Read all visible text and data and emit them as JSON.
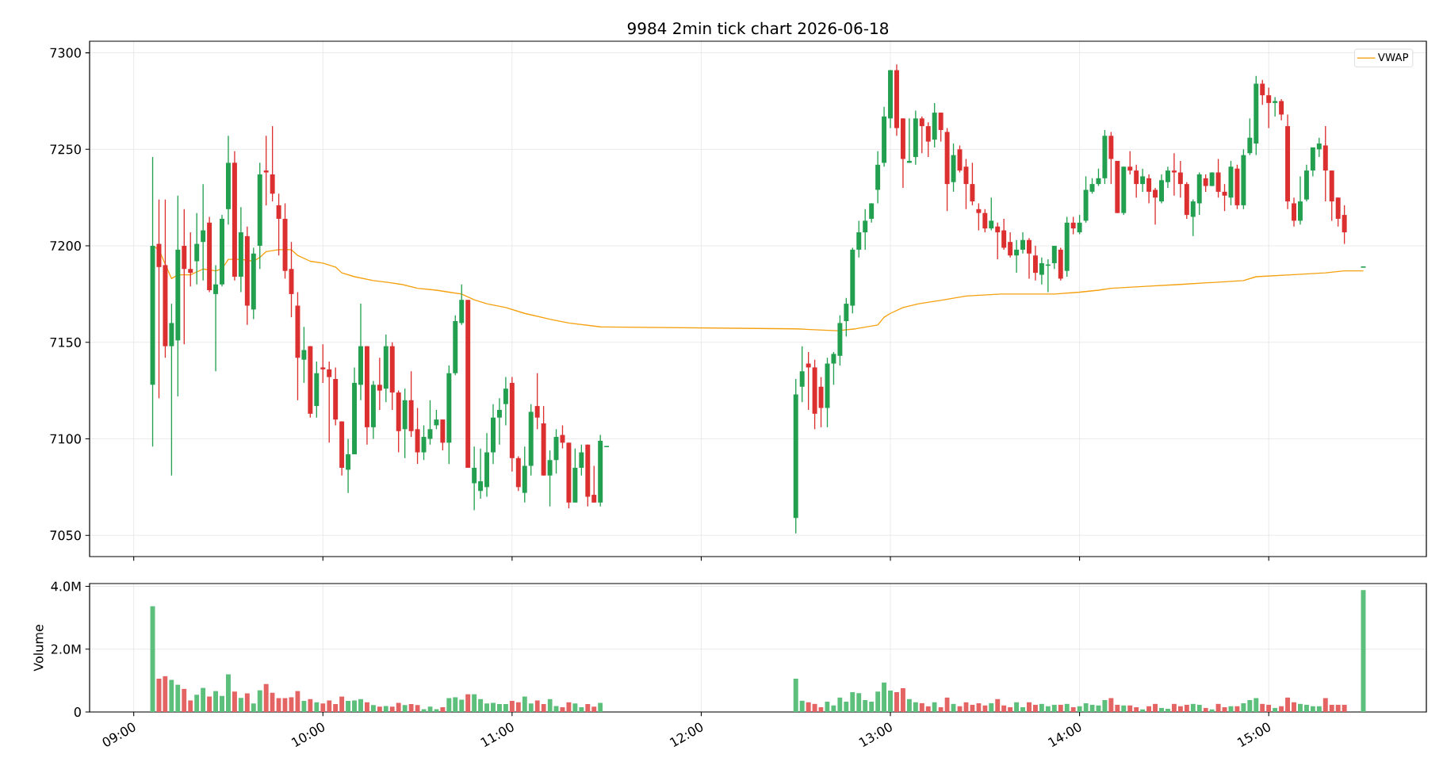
{
  "chart_data": [
    {
      "type": "candlestick",
      "title": "9984 2min tick chart 2026-06-18",
      "x": [
        "2026-06-18T09:06",
        "2026-06-18T09:08",
        "2026-06-18T09:10",
        "2026-06-18T09:12",
        "2026-06-18T09:14",
        "2026-06-18T09:16",
        "2026-06-18T09:18",
        "2026-06-18T09:20",
        "2026-06-18T09:22",
        "2026-06-18T09:24",
        "2026-06-18T09:26",
        "2026-06-18T09:28",
        "2026-06-18T09:30",
        "2026-06-18T09:32",
        "2026-06-18T09:34",
        "2026-06-18T09:36",
        "2026-06-18T09:38",
        "2026-06-18T09:40",
        "2026-06-18T09:42",
        "2026-06-18T09:44",
        "2026-06-18T09:46",
        "2026-06-18T09:48",
        "2026-06-18T09:50",
        "2026-06-18T09:52",
        "2026-06-18T09:54",
        "2026-06-18T09:56",
        "2026-06-18T09:58",
        "2026-06-18T10:00",
        "2026-06-18T10:02",
        "2026-06-18T10:04",
        "2026-06-18T10:06",
        "2026-06-18T10:08",
        "2026-06-18T10:10",
        "2026-06-18T10:12",
        "2026-06-18T10:14",
        "2026-06-18T10:16",
        "2026-06-18T10:18",
        "2026-06-18T10:20",
        "2026-06-18T10:22",
        "2026-06-18T10:24",
        "2026-06-18T10:26",
        "2026-06-18T10:28",
        "2026-06-18T10:30",
        "2026-06-18T10:32",
        "2026-06-18T10:34",
        "2026-06-18T10:36",
        "2026-06-18T10:38",
        "2026-06-18T10:40",
        "2026-06-18T10:42",
        "2026-06-18T10:44",
        "2026-06-18T10:46",
        "2026-06-18T10:48",
        "2026-06-18T10:50",
        "2026-06-18T10:52",
        "2026-06-18T10:54",
        "2026-06-18T10:56",
        "2026-06-18T10:58",
        "2026-06-18T11:00",
        "2026-06-18T11:02",
        "2026-06-18T11:04",
        "2026-06-18T11:06",
        "2026-06-18T11:08",
        "2026-06-18T11:10",
        "2026-06-18T11:12",
        "2026-06-18T11:14",
        "2026-06-18T11:16",
        "2026-06-18T11:18",
        "2026-06-18T11:20",
        "2026-06-18T11:22",
        "2026-06-18T11:24",
        "2026-06-18T11:26",
        "2026-06-18T11:28",
        "2026-06-18T11:30",
        "2026-06-18T12:30",
        "2026-06-18T12:32",
        "2026-06-18T12:34",
        "2026-06-18T12:36",
        "2026-06-18T12:38",
        "2026-06-18T12:40",
        "2026-06-18T12:42",
        "2026-06-18T12:44",
        "2026-06-18T12:46",
        "2026-06-18T12:48",
        "2026-06-18T12:50",
        "2026-06-18T12:52",
        "2026-06-18T12:54",
        "2026-06-18T12:56",
        "2026-06-18T12:58",
        "2026-06-18T13:00",
        "2026-06-18T13:02",
        "2026-06-18T13:04",
        "2026-06-18T13:06",
        "2026-06-18T13:08",
        "2026-06-18T13:10",
        "2026-06-18T13:12",
        "2026-06-18T13:14",
        "2026-06-18T13:16",
        "2026-06-18T13:18",
        "2026-06-18T13:20",
        "2026-06-18T13:22",
        "2026-06-18T13:24",
        "2026-06-18T13:26",
        "2026-06-18T13:28",
        "2026-06-18T13:30",
        "2026-06-18T13:32",
        "2026-06-18T13:34",
        "2026-06-18T13:36",
        "2026-06-18T13:38",
        "2026-06-18T13:40",
        "2026-06-18T13:42",
        "2026-06-18T13:44",
        "2026-06-18T13:46",
        "2026-06-18T13:48",
        "2026-06-18T13:50",
        "2026-06-18T13:52",
        "2026-06-18T13:54",
        "2026-06-18T13:56",
        "2026-06-18T13:58",
        "2026-06-18T14:00",
        "2026-06-18T14:02",
        "2026-06-18T14:04",
        "2026-06-18T14:06",
        "2026-06-18T14:08",
        "2026-06-18T14:10",
        "2026-06-18T14:12",
        "2026-06-18T14:14",
        "2026-06-18T14:16",
        "2026-06-18T14:18",
        "2026-06-18T14:20",
        "2026-06-18T14:22",
        "2026-06-18T14:24",
        "2026-06-18T14:26",
        "2026-06-18T14:28",
        "2026-06-18T14:30",
        "2026-06-18T14:32",
        "2026-06-18T14:34",
        "2026-06-18T14:36",
        "2026-06-18T14:38",
        "2026-06-18T14:40",
        "2026-06-18T14:42",
        "2026-06-18T14:44",
        "2026-06-18T14:46",
        "2026-06-18T14:48",
        "2026-06-18T14:50",
        "2026-06-18T14:52",
        "2026-06-18T14:54",
        "2026-06-18T14:56",
        "2026-06-18T14:58",
        "2026-06-18T15:00",
        "2026-06-18T15:02",
        "2026-06-18T15:04",
        "2026-06-18T15:06",
        "2026-06-18T15:08",
        "2026-06-18T15:10",
        "2026-06-18T15:12",
        "2026-06-18T15:14",
        "2026-06-18T15:16",
        "2026-06-18T15:18",
        "2026-06-18T15:20",
        "2026-06-18T15:22",
        "2026-06-18T15:24",
        "2026-06-18T15:30"
      ],
      "ohlc": [
        [
          7128,
          7246,
          7096,
          7200
        ],
        [
          7201,
          7224,
          7121,
          7189
        ],
        [
          7190,
          7224,
          7142,
          7148
        ],
        [
          7148,
          7170,
          7081,
          7160
        ],
        [
          7151,
          7226,
          7122,
          7198
        ],
        [
          7200,
          7219,
          7149,
          7188
        ],
        [
          7188,
          7207,
          7179,
          7186
        ],
        [
          7192,
          7217,
          7180,
          7201
        ],
        [
          7202,
          7232,
          7182,
          7208
        ],
        [
          7212,
          7215,
          7176,
          7177
        ],
        [
          7175,
          7190,
          7135,
          7180
        ],
        [
          7180,
          7216,
          7179,
          7214
        ],
        [
          7219,
          7257,
          7211,
          7243
        ],
        [
          7243,
          7249,
          7182,
          7184
        ],
        [
          7184,
          7220,
          7176,
          7207
        ],
        [
          7205,
          7210,
          7159,
          7169
        ],
        [
          7167,
          7199,
          7162,
          7196
        ],
        [
          7200,
          7243,
          7188,
          7237
        ],
        [
          7239,
          7257,
          7221,
          7238
        ],
        [
          7237,
          7262,
          7223,
          7227
        ],
        [
          7221,
          7227,
          7195,
          7214
        ],
        [
          7214,
          7222,
          7183,
          7187
        ],
        [
          7188,
          7202,
          7163,
          7175
        ],
        [
          7169,
          7176,
          7120,
          7142
        ],
        [
          7141,
          7158,
          7129,
          7146
        ],
        [
          7148,
          7148,
          7111,
          7113
        ],
        [
          7117,
          7140,
          7111,
          7134
        ],
        [
          7137,
          7149,
          7129,
          7136
        ],
        [
          7136,
          7140,
          7098,
          7132
        ],
        [
          7131,
          7137,
          7107,
          7110
        ],
        [
          7109,
          7109,
          7081,
          7085
        ],
        [
          7084,
          7100,
          7072,
          7092
        ],
        [
          7092,
          7137,
          7092,
          7129
        ],
        [
          7128,
          7170,
          7120,
          7148
        ],
        [
          7148,
          7148,
          7097,
          7106
        ],
        [
          7106,
          7130,
          7100,
          7128
        ],
        [
          7128,
          7142,
          7115,
          7125
        ],
        [
          7126,
          7154,
          7119,
          7148
        ],
        [
          7148,
          7150,
          7115,
          7124
        ],
        [
          7124,
          7125,
          7093,
          7104
        ],
        [
          7105,
          7126,
          7090,
          7120
        ],
        [
          7120,
          7135,
          7101,
          7104
        ],
        [
          7105,
          7116,
          7087,
          7093
        ],
        [
          7093,
          7107,
          7089,
          7101
        ],
        [
          7100,
          7120,
          7097,
          7105
        ],
        [
          7107,
          7115,
          7105,
          7110
        ],
        [
          7110,
          7110,
          7094,
          7098
        ],
        [
          7098,
          7138,
          7087,
          7134
        ],
        [
          7134,
          7164,
          7133,
          7161
        ],
        [
          7160,
          7180,
          7159,
          7172
        ],
        [
          7172,
          7172,
          7085,
          7085
        ],
        [
          7077,
          7096,
          7063,
          7085
        ],
        [
          7073,
          7095,
          7069,
          7078
        ],
        [
          7075,
          7103,
          7070,
          7093
        ],
        [
          7093,
          7118,
          7087,
          7111
        ],
        [
          7111,
          7121,
          7097,
          7115
        ],
        [
          7118,
          7132,
          7107,
          7126
        ],
        [
          7129,
          7132,
          7083,
          7090
        ],
        [
          7090,
          7091,
          7073,
          7075
        ],
        [
          7072,
          7096,
          7067,
          7086
        ],
        [
          7086,
          7118,
          7081,
          7114
        ],
        [
          7117,
          7134,
          7105,
          7111
        ],
        [
          7108,
          7117,
          7081,
          7081
        ],
        [
          7081,
          7094,
          7065,
          7089
        ],
        [
          7089,
          7105,
          7082,
          7101
        ],
        [
          7102,
          7107,
          7095,
          7098
        ],
        [
          7098,
          7098,
          7064,
          7067
        ],
        [
          7067,
          7095,
          7067,
          7085
        ],
        [
          7085,
          7097,
          7081,
          7093
        ],
        [
          7097,
          7097,
          7065,
          7070
        ],
        [
          7071,
          7086,
          7067,
          7067
        ],
        [
          7067,
          7102,
          7065,
          7099
        ],
        [
          7096,
          7096,
          7096,
          7096
        ],
        [
          7059,
          7131,
          7051,
          7123
        ],
        [
          7127,
          7148,
          7119,
          7135
        ],
        [
          7139,
          7145,
          7115,
          7137
        ],
        [
          7137,
          7141,
          7105,
          7113
        ],
        [
          7127,
          7132,
          7106,
          7116
        ],
        [
          7116,
          7142,
          7106,
          7139
        ],
        [
          7139,
          7145,
          7128,
          7144
        ],
        [
          7143,
          7164,
          7138,
          7160
        ],
        [
          7161,
          7173,
          7153,
          7170
        ],
        [
          7169,
          7199,
          7165,
          7198
        ],
        [
          7198,
          7213,
          7194,
          7207
        ],
        [
          7207,
          7219,
          7198,
          7213
        ],
        [
          7214,
          7222,
          7212,
          7222
        ],
        [
          7229,
          7249,
          7222,
          7242
        ],
        [
          7243,
          7272,
          7241,
          7267
        ],
        [
          7266,
          7291,
          7261,
          7291
        ],
        [
          7291,
          7294,
          7257,
          7261
        ],
        [
          7266,
          7266,
          7230,
          7245
        ],
        [
          7243,
          7266,
          7243,
          7244
        ],
        [
          7246,
          7270,
          7242,
          7266
        ],
        [
          7266,
          7267,
          7248,
          7262
        ],
        [
          7262,
          7264,
          7246,
          7254
        ],
        [
          7255,
          7274,
          7251,
          7269
        ],
        [
          7269,
          7269,
          7254,
          7260
        ],
        [
          7259,
          7261,
          7218,
          7232
        ],
        [
          7233,
          7253,
          7228,
          7247
        ],
        [
          7250,
          7252,
          7238,
          7239
        ],
        [
          7241,
          7245,
          7219,
          7232
        ],
        [
          7232,
          7243,
          7221,
          7223
        ],
        [
          7219,
          7222,
          7208,
          7217
        ],
        [
          7217,
          7219,
          7207,
          7209
        ],
        [
          7209,
          7225,
          7208,
          7213
        ],
        [
          7210,
          7212,
          7193,
          7207
        ],
        [
          7208,
          7214,
          7198,
          7199
        ],
        [
          7202,
          7207,
          7194,
          7195
        ],
        [
          7195,
          7203,
          7186,
          7198
        ],
        [
          7198,
          7207,
          7196,
          7203
        ],
        [
          7203,
          7204,
          7183,
          7196
        ],
        [
          7195,
          7200,
          7182,
          7186
        ],
        [
          7185,
          7194,
          7180,
          7191
        ],
        [
          7190,
          7193,
          7176,
          7190
        ],
        [
          7191,
          7200,
          7188,
          7200
        ],
        [
          7198,
          7199,
          7182,
          7183
        ],
        [
          7187,
          7215,
          7184,
          7212
        ],
        [
          7212,
          7215,
          7206,
          7209
        ],
        [
          7207,
          7216,
          7206,
          7212
        ],
        [
          7213,
          7236,
          7212,
          7229
        ],
        [
          7228,
          7235,
          7227,
          7232
        ],
        [
          7232,
          7240,
          7231,
          7235
        ],
        [
          7235,
          7260,
          7232,
          7257
        ],
        [
          7257,
          7259,
          7232,
          7245
        ],
        [
          7244,
          7244,
          7217,
          7217
        ],
        [
          7217,
          7241,
          7216,
          7241
        ],
        [
          7241,
          7249,
          7237,
          7239
        ],
        [
          7239,
          7242,
          7225,
          7232
        ],
        [
          7232,
          7240,
          7228,
          7236
        ],
        [
          7235,
          7237,
          7222,
          7228
        ],
        [
          7229,
          7230,
          7211,
          7225
        ],
        [
          7223,
          7237,
          7222,
          7234
        ],
        [
          7233,
          7241,
          7230,
          7239
        ],
        [
          7239,
          7248,
          7226,
          7238
        ],
        [
          7238,
          7244,
          7225,
          7232
        ],
        [
          7232,
          7233,
          7214,
          7216
        ],
        [
          7215,
          7224,
          7205,
          7223
        ],
        [
          7222,
          7238,
          7216,
          7237
        ],
        [
          7235,
          7237,
          7228,
          7231
        ],
        [
          7231,
          7238,
          7231,
          7238
        ],
        [
          7238,
          7245,
          7225,
          7228
        ],
        [
          7228,
          7232,
          7218,
          7226
        ],
        [
          7225,
          7244,
          7221,
          7241
        ],
        [
          7240,
          7242,
          7219,
          7221
        ],
        [
          7221,
          7250,
          7219,
          7247
        ],
        [
          7248,
          7266,
          7247,
          7256
        ],
        [
          7253,
          7288,
          7247,
          7284
        ],
        [
          7284,
          7286,
          7273,
          7278
        ],
        [
          7278,
          7282,
          7261,
          7274
        ],
        [
          7274,
          7277,
          7267,
          7275
        ],
        [
          7275,
          7276,
          7265,
          7268
        ],
        [
          7262,
          7268,
          7219,
          7223
        ],
        [
          7222,
          7225,
          7210,
          7213
        ],
        [
          7213,
          7236,
          7211,
          7223
        ],
        [
          7224,
          7242,
          7223,
          7239
        ],
        [
          7239,
          7251,
          7236,
          7251
        ],
        [
          7250,
          7256,
          7246,
          7253
        ],
        [
          7252,
          7262,
          7223,
          7239
        ],
        [
          7239,
          7239,
          7213,
          7223
        ],
        [
          7225,
          7225,
          7210,
          7214
        ],
        [
          7216,
          7221,
          7201,
          7207
        ],
        [
          7189,
          7189,
          7189,
          7189
        ]
      ],
      "colors": [
        "#22a04f",
        "#dc2f2f",
        "#dc2f2f",
        "#22a04f",
        "#22a04f",
        "#dc2f2f",
        "#dc2f2f",
        "#22a04f",
        "#22a04f",
        "#dc2f2f",
        "#22a04f",
        "#22a04f",
        "#22a04f",
        "#dc2f2f",
        "#22a04f",
        "#dc2f2f",
        "#22a04f",
        "#22a04f",
        "#dc2f2f",
        "#dc2f2f",
        "#dc2f2f",
        "#dc2f2f",
        "#dc2f2f",
        "#dc2f2f",
        "#22a04f",
        "#dc2f2f",
        "#22a04f",
        "#dc2f2f",
        "#dc2f2f",
        "#dc2f2f",
        "#dc2f2f",
        "#22a04f",
        "#22a04f",
        "#22a04f",
        "#dc2f2f",
        "#22a04f",
        "#dc2f2f",
        "#22a04f",
        "#dc2f2f",
        "#dc2f2f",
        "#22a04f",
        "#dc2f2f",
        "#dc2f2f",
        "#22a04f",
        "#22a04f",
        "#22a04f",
        "#dc2f2f",
        "#22a04f",
        "#22a04f",
        "#22a04f",
        "#dc2f2f",
        "#22a04f",
        "#22a04f",
        "#22a04f",
        "#22a04f",
        "#22a04f",
        "#22a04f",
        "#dc2f2f",
        "#dc2f2f",
        "#22a04f",
        "#22a04f",
        "#dc2f2f",
        "#dc2f2f",
        "#22a04f",
        "#22a04f",
        "#dc2f2f",
        "#dc2f2f",
        "#22a04f",
        "#22a04f",
        "#dc2f2f",
        "#dc2f2f",
        "#22a04f",
        "#22a04f",
        "#22a04f",
        "#22a04f",
        "#dc2f2f",
        "#dc2f2f",
        "#dc2f2f",
        "#22a04f",
        "#22a04f",
        "#22a04f",
        "#22a04f",
        "#22a04f",
        "#22a04f",
        "#22a04f",
        "#22a04f",
        "#22a04f",
        "#22a04f",
        "#22a04f",
        "#dc2f2f",
        "#dc2f2f",
        "#22a04f",
        "#22a04f",
        "#dc2f2f",
        "#dc2f2f",
        "#22a04f",
        "#dc2f2f",
        "#dc2f2f",
        "#22a04f",
        "#dc2f2f",
        "#dc2f2f",
        "#dc2f2f",
        "#dc2f2f",
        "#dc2f2f",
        "#22a04f",
        "#dc2f2f",
        "#dc2f2f",
        "#dc2f2f",
        "#22a04f",
        "#22a04f",
        "#dc2f2f",
        "#dc2f2f",
        "#22a04f",
        "#22a04f",
        "#22a04f",
        "#dc2f2f",
        "#22a04f",
        "#dc2f2f",
        "#22a04f",
        "#22a04f",
        "#22a04f",
        "#22a04f",
        "#22a04f",
        "#dc2f2f",
        "#dc2f2f",
        "#22a04f",
        "#dc2f2f",
        "#dc2f2f",
        "#22a04f",
        "#dc2f2f",
        "#dc2f2f",
        "#22a04f",
        "#22a04f",
        "#dc2f2f",
        "#dc2f2f",
        "#dc2f2f",
        "#22a04f",
        "#22a04f",
        "#dc2f2f",
        "#22a04f",
        "#dc2f2f",
        "#dc2f2f",
        "#22a04f",
        "#dc2f2f",
        "#22a04f",
        "#22a04f",
        "#22a04f",
        "#dc2f2f",
        "#dc2f2f",
        "#22a04f",
        "#dc2f2f",
        "#dc2f2f",
        "#dc2f2f",
        "#22a04f",
        "#22a04f",
        "#22a04f",
        "#22a04f",
        "#dc2f2f",
        "#dc2f2f",
        "#dc2f2f",
        "#dc2f2f",
        "#22a04f"
      ],
      "series": [
        {
          "name": "VWAP",
          "type": "line",
          "color": "#f5a00f",
          "x": [
            "2026-06-18T09:06",
            "2026-06-18T09:08",
            "2026-06-18T09:10",
            "2026-06-18T09:12",
            "2026-06-18T09:14",
            "2026-06-18T09:18",
            "2026-06-18T09:22",
            "2026-06-18T09:26",
            "2026-06-18T09:28",
            "2026-06-18T09:30",
            "2026-06-18T09:34",
            "2026-06-18T09:38",
            "2026-06-18T09:40",
            "2026-06-18T09:42",
            "2026-06-18T09:46",
            "2026-06-18T09:50",
            "2026-06-18T09:52",
            "2026-06-18T09:56",
            "2026-06-18T10:00",
            "2026-06-18T10:04",
            "2026-06-18T10:06",
            "2026-06-18T10:10",
            "2026-06-18T10:16",
            "2026-06-18T10:21",
            "2026-06-18T10:25",
            "2026-06-18T10:30",
            "2026-06-18T10:36",
            "2026-06-18T10:40",
            "2026-06-18T10:44",
            "2026-06-18T10:48",
            "2026-06-18T10:52",
            "2026-06-18T10:58",
            "2026-06-18T11:04",
            "2026-06-18T11:12",
            "2026-06-18T11:18",
            "2026-06-18T11:28",
            "2026-06-18T12:30",
            "2026-06-18T12:43",
            "2026-06-18T12:49",
            "2026-06-18T12:56",
            "2026-06-18T12:58",
            "2026-06-18T13:00",
            "2026-06-18T13:04",
            "2026-06-18T13:09",
            "2026-06-18T13:17",
            "2026-06-18T13:24",
            "2026-06-18T13:35",
            "2026-06-18T13:52",
            "2026-06-18T14:00",
            "2026-06-18T14:06",
            "2026-06-18T14:10",
            "2026-06-18T14:21",
            "2026-06-18T14:32",
            "2026-06-18T14:42",
            "2026-06-18T14:52",
            "2026-06-18T14:56",
            "2026-06-18T15:07",
            "2026-06-18T15:18",
            "2026-06-18T15:24",
            "2026-06-18T15:30"
          ],
          "values": [
            7200,
            7198,
            null,
            7183,
            7185,
            7185,
            7188,
            7187,
            7188,
            7193,
            7193,
            7192,
            7194,
            7197,
            7198,
            7198,
            7195,
            7192,
            7191,
            7189,
            7186,
            7184,
            7182,
            7181,
            7180,
            7178,
            7177,
            7176,
            7175,
            7172,
            7170,
            7168,
            7165,
            7162,
            7160,
            7158,
            7157,
            7156,
            7157,
            7159,
            7163,
            7165,
            7168,
            7170,
            7172,
            7174,
            7175,
            7175,
            7176,
            7177,
            7178,
            7179,
            7180,
            7181,
            7182,
            7184,
            7185,
            7186,
            7187,
            7187
          ]
        }
      ],
      "xlim": [
        "2026-06-18T08:46",
        "2026-06-18T15:50"
      ],
      "xticks": [
        {
          "value": "2026-06-18T09:00",
          "label": null
        },
        {
          "value": "2026-06-18T10:00",
          "label": null
        },
        {
          "value": "2026-06-18T11:00",
          "label": null
        },
        {
          "value": "2026-06-18T12:00",
          "label": null
        },
        {
          "value": "2026-06-18T13:00",
          "label": null
        },
        {
          "value": "2026-06-18T14:00",
          "label": null
        },
        {
          "value": "2026-06-18T15:00",
          "label": null
        }
      ],
      "ylim": [
        7039,
        7306
      ],
      "yticks": [
        7050,
        7100,
        7150,
        7200,
        7250,
        7300
      ],
      "grid": true,
      "legend": "top right",
      "tick_labels": "y"
    },
    {
      "type": "bar",
      "ylabel": "Volume",
      "x": [
        "2026-06-18T09:06",
        "2026-06-18T09:08",
        "2026-06-18T09:10",
        "2026-06-18T09:12",
        "2026-06-18T09:14",
        "2026-06-18T09:16",
        "2026-06-18T09:18",
        "2026-06-18T09:20",
        "2026-06-18T09:22",
        "2026-06-18T09:24",
        "2026-06-18T09:26",
        "2026-06-18T09:28",
        "2026-06-18T09:30",
        "2026-06-18T09:32",
        "2026-06-18T09:34",
        "2026-06-18T09:36",
        "2026-06-18T09:38",
        "2026-06-18T09:40",
        "2026-06-18T09:42",
        "2026-06-18T09:44",
        "2026-06-18T09:46",
        "2026-06-18T09:48",
        "2026-06-18T09:50",
        "2026-06-18T09:52",
        "2026-06-18T09:54",
        "2026-06-18T09:56",
        "2026-06-18T09:58",
        "2026-06-18T10:00",
        "2026-06-18T10:02",
        "2026-06-18T10:04",
        "2026-06-18T10:06",
        "2026-06-18T10:08",
        "2026-06-18T10:10",
        "2026-06-18T10:12",
        "2026-06-18T10:14",
        "2026-06-18T10:16",
        "2026-06-18T10:18",
        "2026-06-18T10:20",
        "2026-06-18T10:22",
        "2026-06-18T10:24",
        "2026-06-18T10:26",
        "2026-06-18T10:28",
        "2026-06-18T10:30",
        "2026-06-18T10:32",
        "2026-06-18T10:34",
        "2026-06-18T10:36",
        "2026-06-18T10:38",
        "2026-06-18T10:40",
        "2026-06-18T10:42",
        "2026-06-18T10:44",
        "2026-06-18T10:46",
        "2026-06-18T10:48",
        "2026-06-18T10:50",
        "2026-06-18T10:52",
        "2026-06-18T10:54",
        "2026-06-18T10:56",
        "2026-06-18T10:58",
        "2026-06-18T11:00",
        "2026-06-18T11:02",
        "2026-06-18T11:04",
        "2026-06-18T11:06",
        "2026-06-18T11:08",
        "2026-06-18T11:10",
        "2026-06-18T11:12",
        "2026-06-18T11:14",
        "2026-06-18T11:16",
        "2026-06-18T11:18",
        "2026-06-18T11:20",
        "2026-06-18T11:22",
        "2026-06-18T11:24",
        "2026-06-18T11:26",
        "2026-06-18T11:28",
        "2026-06-18T12:30",
        "2026-06-18T12:32",
        "2026-06-18T12:34",
        "2026-06-18T12:36",
        "2026-06-18T12:38",
        "2026-06-18T12:40",
        "2026-06-18T12:42",
        "2026-06-18T12:44",
        "2026-06-18T12:46",
        "2026-06-18T12:48",
        "2026-06-18T12:50",
        "2026-06-18T12:52",
        "2026-06-18T12:54",
        "2026-06-18T12:56",
        "2026-06-18T12:58",
        "2026-06-18T13:00",
        "2026-06-18T13:02",
        "2026-06-18T13:04",
        "2026-06-18T13:06",
        "2026-06-18T13:08",
        "2026-06-18T13:10",
        "2026-06-18T13:12",
        "2026-06-18T13:14",
        "2026-06-18T13:16",
        "2026-06-18T13:18",
        "2026-06-18T13:20",
        "2026-06-18T13:22",
        "2026-06-18T13:24",
        "2026-06-18T13:26",
        "2026-06-18T13:28",
        "2026-06-18T13:30",
        "2026-06-18T13:32",
        "2026-06-18T13:34",
        "2026-06-18T13:36",
        "2026-06-18T13:38",
        "2026-06-18T13:40",
        "2026-06-18T13:42",
        "2026-06-18T13:44",
        "2026-06-18T13:46",
        "2026-06-18T13:48",
        "2026-06-18T13:50",
        "2026-06-18T13:52",
        "2026-06-18T13:54",
        "2026-06-18T13:56",
        "2026-06-18T13:58",
        "2026-06-18T14:00",
        "2026-06-18T14:02",
        "2026-06-18T14:04",
        "2026-06-18T14:06",
        "2026-06-18T14:08",
        "2026-06-18T14:10",
        "2026-06-18T14:12",
        "2026-06-18T14:14",
        "2026-06-18T14:16",
        "2026-06-18T14:18",
        "2026-06-18T14:20",
        "2026-06-18T14:22",
        "2026-06-18T14:24",
        "2026-06-18T14:26",
        "2026-06-18T14:28",
        "2026-06-18T14:30",
        "2026-06-18T14:32",
        "2026-06-18T14:34",
        "2026-06-18T14:36",
        "2026-06-18T14:38",
        "2026-06-18T14:40",
        "2026-06-18T14:42",
        "2026-06-18T14:44",
        "2026-06-18T14:46",
        "2026-06-18T14:48",
        "2026-06-18T14:50",
        "2026-06-18T14:52",
        "2026-06-18T14:54",
        "2026-06-18T14:56",
        "2026-06-18T14:58",
        "2026-06-18T15:00",
        "2026-06-18T15:02",
        "2026-06-18T15:04",
        "2026-06-18T15:06",
        "2026-06-18T15:08",
        "2026-06-18T15:10",
        "2026-06-18T15:12",
        "2026-06-18T15:14",
        "2026-06-18T15:16",
        "2026-06-18T15:18",
        "2026-06-18T15:20",
        "2026-06-18T15:22",
        "2026-06-18T15:24",
        "2026-06-18T15:30"
      ],
      "values": [
        3.37,
        1.06,
        1.14,
        1.02,
        0.87,
        0.74,
        0.37,
        0.55,
        0.77,
        0.49,
        0.67,
        0.51,
        1.2,
        0.65,
        0.45,
        0.59,
        0.27,
        0.69,
        0.89,
        0.61,
        0.44,
        0.44,
        0.47,
        0.67,
        0.35,
        0.41,
        0.31,
        0.27,
        0.37,
        0.25,
        0.49,
        0.35,
        0.37,
        0.41,
        0.31,
        0.22,
        0.17,
        0.19,
        0.17,
        0.29,
        0.22,
        0.25,
        0.22,
        0.09,
        0.17,
        0.09,
        0.15,
        0.44,
        0.47,
        0.39,
        0.57,
        0.57,
        0.41,
        0.27,
        0.29,
        0.25,
        0.25,
        0.35,
        0.31,
        0.49,
        0.27,
        0.37,
        0.25,
        0.41,
        0.19,
        0.15,
        0.31,
        0.27,
        0.15,
        0.25,
        0.17,
        0.29,
        1.06,
        0.36,
        0.31,
        0.26,
        0.15,
        0.33,
        0.21,
        0.46,
        0.33,
        0.63,
        0.6,
        0.38,
        0.33,
        0.65,
        0.94,
        0.68,
        0.63,
        0.76,
        0.41,
        0.31,
        0.28,
        0.18,
        0.31,
        0.15,
        0.46,
        0.26,
        0.18,
        0.31,
        0.23,
        0.28,
        0.21,
        0.28,
        0.41,
        0.21,
        0.15,
        0.31,
        0.15,
        0.31,
        0.23,
        0.26,
        0.18,
        0.23,
        0.23,
        0.26,
        0.15,
        0.18,
        0.28,
        0.23,
        0.21,
        0.38,
        0.44,
        0.23,
        0.21,
        0.21,
        0.15,
        0.08,
        0.18,
        0.26,
        0.13,
        0.1,
        0.26,
        0.18,
        0.23,
        0.26,
        0.23,
        0.13,
        0.08,
        0.26,
        0.15,
        0.18,
        0.18,
        0.28,
        0.38,
        0.44,
        0.26,
        0.23,
        0.13,
        0.18,
        0.46,
        0.31,
        0.26,
        0.23,
        0.18,
        0.18,
        0.44,
        0.23,
        0.23,
        0.23,
        3.88
      ],
      "colors": [
        "#5dbf7c",
        "#e46464",
        "#e46464",
        "#5dbf7c",
        "#5dbf7c",
        "#e46464",
        "#e46464",
        "#5dbf7c",
        "#5dbf7c",
        "#e46464",
        "#5dbf7c",
        "#5dbf7c",
        "#5dbf7c",
        "#e46464",
        "#5dbf7c",
        "#e46464",
        "#5dbf7c",
        "#5dbf7c",
        "#e46464",
        "#e46464",
        "#e46464",
        "#e46464",
        "#e46464",
        "#e46464",
        "#5dbf7c",
        "#e46464",
        "#5dbf7c",
        "#e46464",
        "#e46464",
        "#e46464",
        "#e46464",
        "#5dbf7c",
        "#5dbf7c",
        "#5dbf7c",
        "#e46464",
        "#5dbf7c",
        "#e46464",
        "#5dbf7c",
        "#e46464",
        "#e46464",
        "#5dbf7c",
        "#e46464",
        "#e46464",
        "#5dbf7c",
        "#5dbf7c",
        "#5dbf7c",
        "#e46464",
        "#5dbf7c",
        "#5dbf7c",
        "#5dbf7c",
        "#e46464",
        "#5dbf7c",
        "#5dbf7c",
        "#5dbf7c",
        "#5dbf7c",
        "#5dbf7c",
        "#5dbf7c",
        "#e46464",
        "#e46464",
        "#5dbf7c",
        "#5dbf7c",
        "#e46464",
        "#e46464",
        "#5dbf7c",
        "#5dbf7c",
        "#e46464",
        "#e46464",
        "#5dbf7c",
        "#5dbf7c",
        "#e46464",
        "#e46464",
        "#5dbf7c",
        "#5dbf7c",
        "#5dbf7c",
        "#e46464",
        "#e46464",
        "#e46464",
        "#5dbf7c",
        "#5dbf7c",
        "#5dbf7c",
        "#5dbf7c",
        "#5dbf7c",
        "#5dbf7c",
        "#5dbf7c",
        "#5dbf7c",
        "#5dbf7c",
        "#5dbf7c",
        "#5dbf7c",
        "#e46464",
        "#e46464",
        "#5dbf7c",
        "#5dbf7c",
        "#e46464",
        "#e46464",
        "#5dbf7c",
        "#e46464",
        "#e46464",
        "#5dbf7c",
        "#e46464",
        "#e46464",
        "#e46464",
        "#e46464",
        "#e46464",
        "#5dbf7c",
        "#e46464",
        "#e46464",
        "#e46464",
        "#5dbf7c",
        "#5dbf7c",
        "#e46464",
        "#e46464",
        "#5dbf7c",
        "#5dbf7c",
        "#5dbf7c",
        "#e46464",
        "#5dbf7c",
        "#e46464",
        "#5dbf7c",
        "#5dbf7c",
        "#5dbf7c",
        "#5dbf7c",
        "#5dbf7c",
        "#e46464",
        "#e46464",
        "#5dbf7c",
        "#e46464",
        "#e46464",
        "#5dbf7c",
        "#e46464",
        "#e46464",
        "#5dbf7c",
        "#5dbf7c",
        "#e46464",
        "#e46464",
        "#e46464",
        "#5dbf7c",
        "#5dbf7c",
        "#e46464",
        "#5dbf7c",
        "#e46464",
        "#e46464",
        "#5dbf7c",
        "#e46464",
        "#5dbf7c",
        "#5dbf7c",
        "#5dbf7c",
        "#e46464",
        "#e46464",
        "#5dbf7c",
        "#e46464",
        "#e46464",
        "#e46464",
        "#5dbf7c",
        "#5dbf7c",
        "#5dbf7c",
        "#5dbf7c",
        "#e46464",
        "#e46464",
        "#e46464",
        "#e46464",
        "#5dbf7c"
      ],
      "xlim": [
        "2026-06-18T08:46",
        "2026-06-18T15:50"
      ],
      "xticks": [
        {
          "value": "2026-06-18T09:00",
          "label": "09:00"
        },
        {
          "value": "2026-06-18T10:00",
          "label": "10:00"
        },
        {
          "value": "2026-06-18T11:00",
          "label": "11:00"
        },
        {
          "value": "2026-06-18T12:00",
          "label": "12:00"
        },
        {
          "value": "2026-06-18T13:00",
          "label": "13:00"
        },
        {
          "value": "2026-06-18T14:00",
          "label": "14:00"
        },
        {
          "value": "2026-06-18T15:00",
          "label": "15:00"
        }
      ],
      "ylim": [
        0,
        4.09
      ],
      "yticks": [
        0,
        {
          "value": 2,
          "label": "2.0M"
        },
        {
          "value": 4,
          "label": "4.0M"
        }
      ],
      "grid": true
    }
  ]
}
